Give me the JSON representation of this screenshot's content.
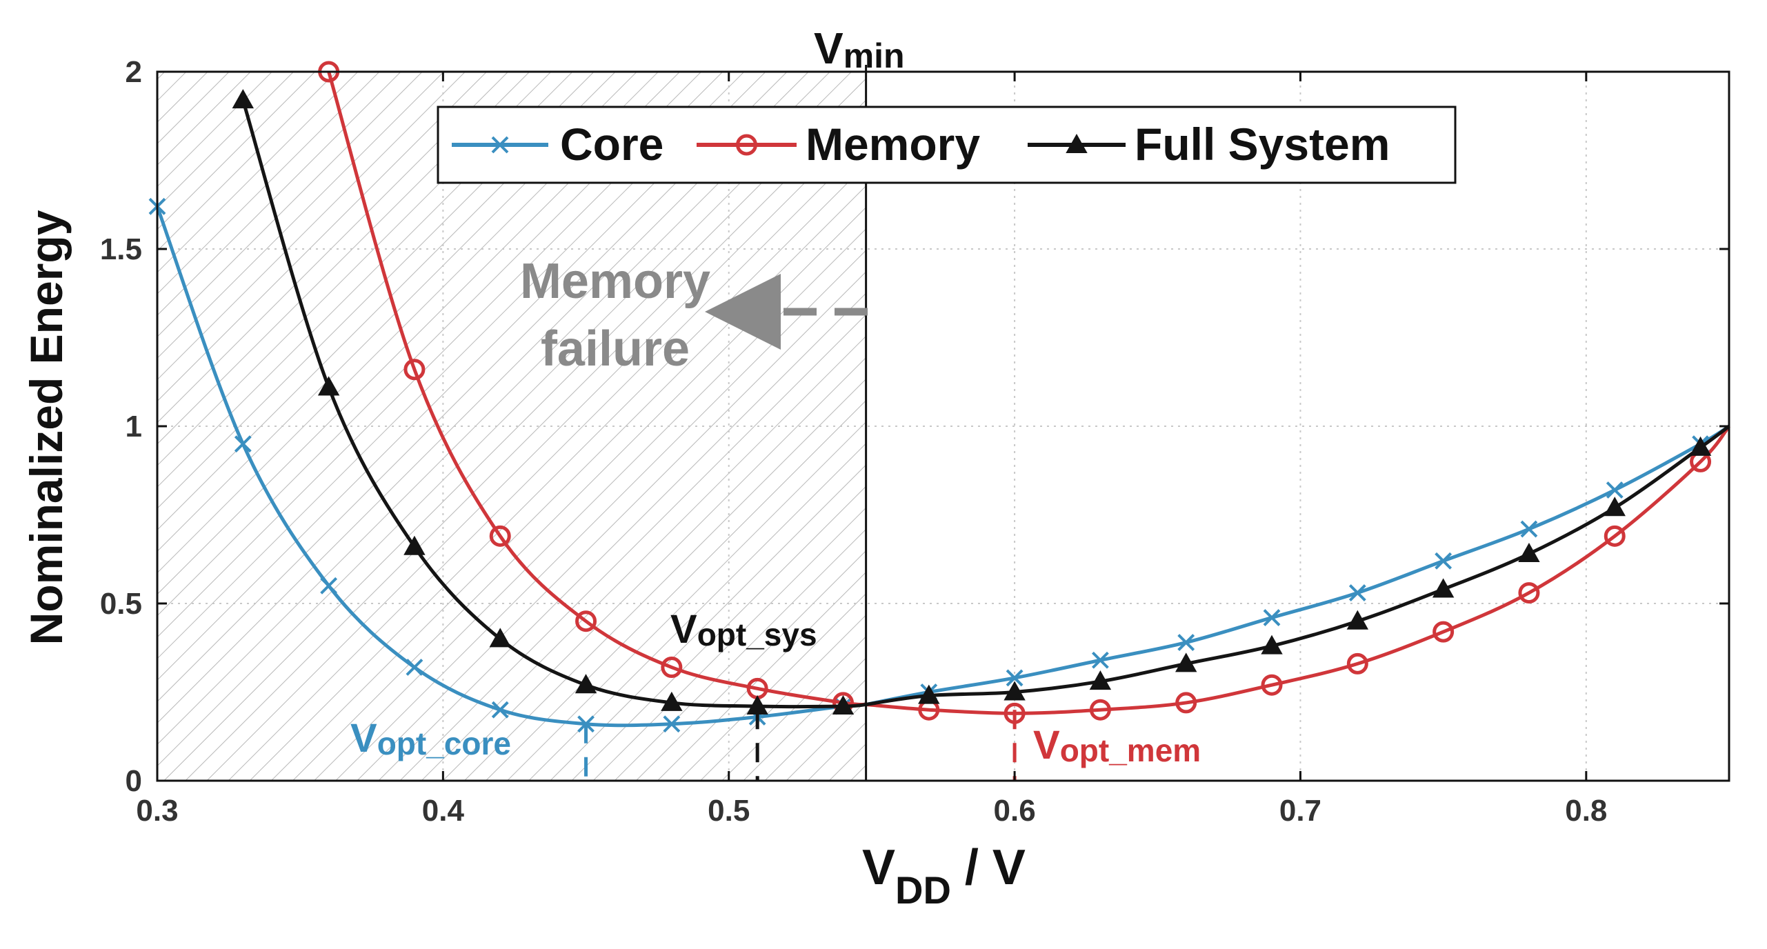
{
  "chart_data": {
    "type": "line",
    "title": "",
    "xlabel": "V",
    "xlabel_sub": "DD",
    "xlabel_suffix": " / V",
    "ylabel": "Nominalized Energy",
    "xlim": [
      0.3,
      0.85
    ],
    "ylim": [
      0,
      2
    ],
    "xticks": [
      0.3,
      0.4,
      0.5,
      0.6,
      0.7,
      0.8
    ],
    "xtick_labels": [
      "0.3",
      "0.4",
      "0.5",
      "0.6",
      "0.7",
      "0.8"
    ],
    "yticks": [
      0,
      0.5,
      1,
      1.5,
      2
    ],
    "ytick_labels": [
      "0",
      "0.5",
      "1",
      "1.5",
      "2"
    ],
    "grid": "dotted",
    "legend_position": "top",
    "colors": {
      "core": "#3a8fc0",
      "memory": "#d0363a",
      "full_system": "#141414",
      "arrow": "#8a8a8a",
      "failure_text": "#8a8a8a"
    },
    "series": [
      {
        "name": "Core",
        "key": "core",
        "marker": "x",
        "x": [
          0.3,
          0.33,
          0.36,
          0.39,
          0.42,
          0.45,
          0.48,
          0.51,
          0.54
        ],
        "y": [
          1.62,
          0.95,
          0.55,
          0.32,
          0.2,
          0.16,
          0.16,
          0.18,
          0.21
        ],
        "x2": [
          0.57,
          0.6,
          0.63,
          0.66,
          0.69,
          0.72,
          0.75,
          0.78,
          0.81,
          0.84
        ],
        "y2": [
          0.25,
          0.29,
          0.34,
          0.39,
          0.46,
          0.53,
          0.62,
          0.71,
          0.82,
          0.95
        ]
      },
      {
        "name": "Memory",
        "key": "memory",
        "marker": "o",
        "x": [
          0.36,
          0.39,
          0.42,
          0.45,
          0.48,
          0.51,
          0.54
        ],
        "y": [
          2.0,
          1.16,
          0.69,
          0.45,
          0.32,
          0.26,
          0.22
        ],
        "x2": [
          0.57,
          0.6,
          0.63,
          0.66,
          0.69,
          0.72,
          0.75,
          0.78,
          0.81,
          0.84
        ],
        "y2": [
          0.2,
          0.19,
          0.2,
          0.22,
          0.27,
          0.33,
          0.42,
          0.53,
          0.69,
          0.9
        ]
      },
      {
        "name": "Full System",
        "key": "full_system",
        "marker": "^",
        "x": [
          0.33,
          0.36,
          0.39,
          0.42,
          0.45,
          0.48,
          0.51,
          0.54
        ],
        "y": [
          1.92,
          1.11,
          0.66,
          0.4,
          0.27,
          0.22,
          0.21,
          0.21
        ],
        "x2": [
          0.57,
          0.6,
          0.63,
          0.66,
          0.69,
          0.72,
          0.75,
          0.78,
          0.81,
          0.84
        ],
        "y2": [
          0.24,
          0.25,
          0.28,
          0.33,
          0.38,
          0.45,
          0.54,
          0.64,
          0.77,
          0.94
        ]
      }
    ],
    "vmin": {
      "x": 0.548,
      "label_main": "V",
      "label_sub": "min"
    },
    "shaded_region": {
      "x_from": 0.3,
      "x_to": 0.548,
      "pattern": "hatched"
    },
    "annotations": [
      {
        "key": "failure_line1",
        "text": "Memory"
      },
      {
        "key": "failure_line2",
        "text": "failure"
      },
      {
        "key": "vopt_sys",
        "main": "V",
        "sub": "opt_sys",
        "x": 0.51
      },
      {
        "key": "vopt_core",
        "main": "V",
        "sub": "opt_core",
        "x": 0.45
      },
      {
        "key": "vopt_mem",
        "main": "V",
        "sub": "opt_mem",
        "x": 0.6
      }
    ]
  }
}
